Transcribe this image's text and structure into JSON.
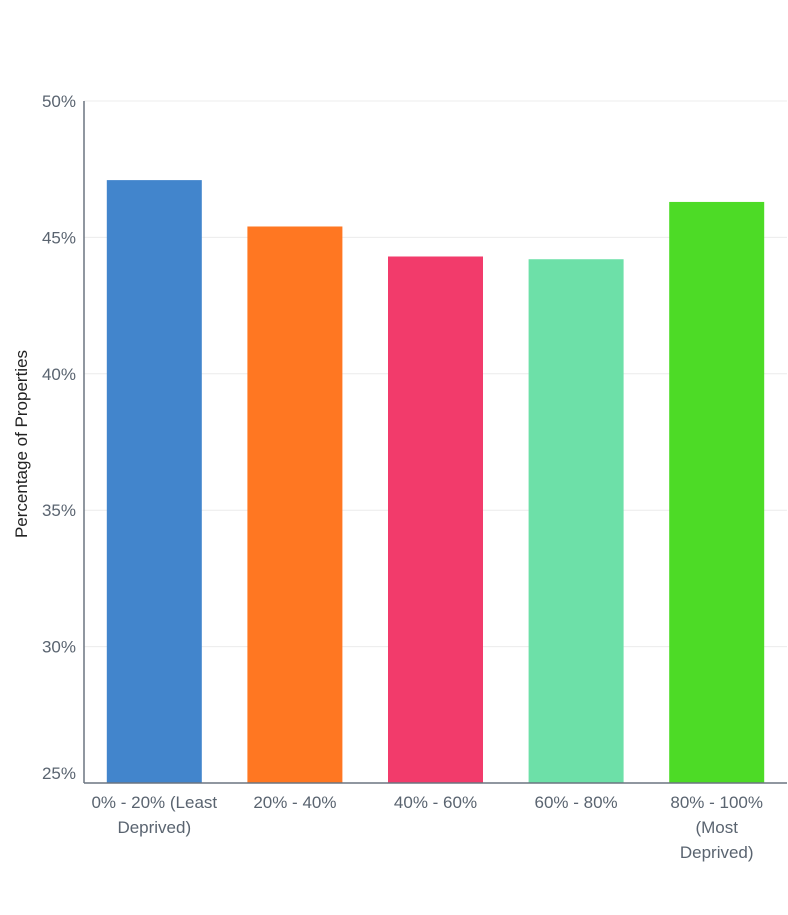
{
  "chart_data": {
    "type": "bar",
    "categories": [
      "0% - 20% (Least Deprived)",
      "20% - 40%",
      "40% - 60%",
      "60% - 80%",
      "80% - 100% (Most Deprived)"
    ],
    "category_lines": [
      [
        "0% - 20% (Least",
        "Deprived)"
      ],
      [
        "20% - 40%"
      ],
      [
        "40% - 60%"
      ],
      [
        "60% - 80%"
      ],
      [
        "80% - 100%",
        "(Most",
        "Deprived)"
      ]
    ],
    "values": [
      47.1,
      45.4,
      44.3,
      44.2,
      46.3
    ],
    "colors": [
      "#4285cc",
      "#ff7722",
      "#f23b6b",
      "#6de0a8",
      "#4ddb26"
    ],
    "ylabel": "Percentage of Properties",
    "ylim": [
      25,
      50
    ],
    "yticks": [
      25,
      30,
      35,
      40,
      45,
      50
    ],
    "ytick_labels": [
      "25%",
      "30%",
      "35%",
      "40%",
      "45%",
      "50%"
    ],
    "grid": true
  }
}
